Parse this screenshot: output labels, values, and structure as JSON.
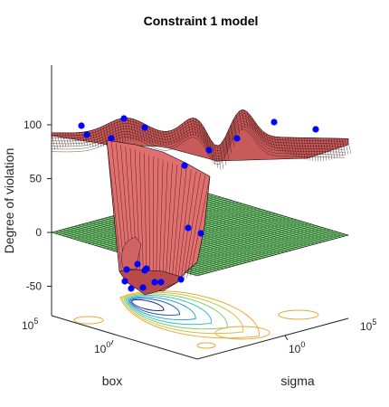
{
  "chart_data": {
    "type": "surface3d",
    "title": "Constraint 1 model",
    "zlabel": "Degree of violation",
    "xlabel": "box",
    "ylabel": "sigma",
    "x_scale": "log",
    "y_scale": "log",
    "z_ticks": [
      -50,
      0,
      50,
      100
    ],
    "x_tick_labels": [
      {
        "base": "10",
        "exp": "5"
      },
      {
        "base": "10",
        "exp": "0"
      }
    ],
    "y_tick_labels": [
      {
        "base": "10",
        "exp": "0"
      },
      {
        "base": "10",
        "exp": "5"
      }
    ],
    "surfaces": [
      {
        "kind": "model",
        "color": "#e07070",
        "edge": "#000000"
      },
      {
        "kind": "plane",
        "z": 0,
        "color": "#7fd07f",
        "edge": "#000000"
      }
    ],
    "contour_below": true,
    "points": {
      "color": "#0000ff",
      "z": [
        99,
        91,
        87,
        104,
        97,
        61,
        77,
        96,
        101,
        5,
        0,
        -32,
        -36,
        -37,
        -45,
        -48,
        -44,
        -41,
        -40,
        -42,
        -30,
        -33
      ]
    }
  }
}
